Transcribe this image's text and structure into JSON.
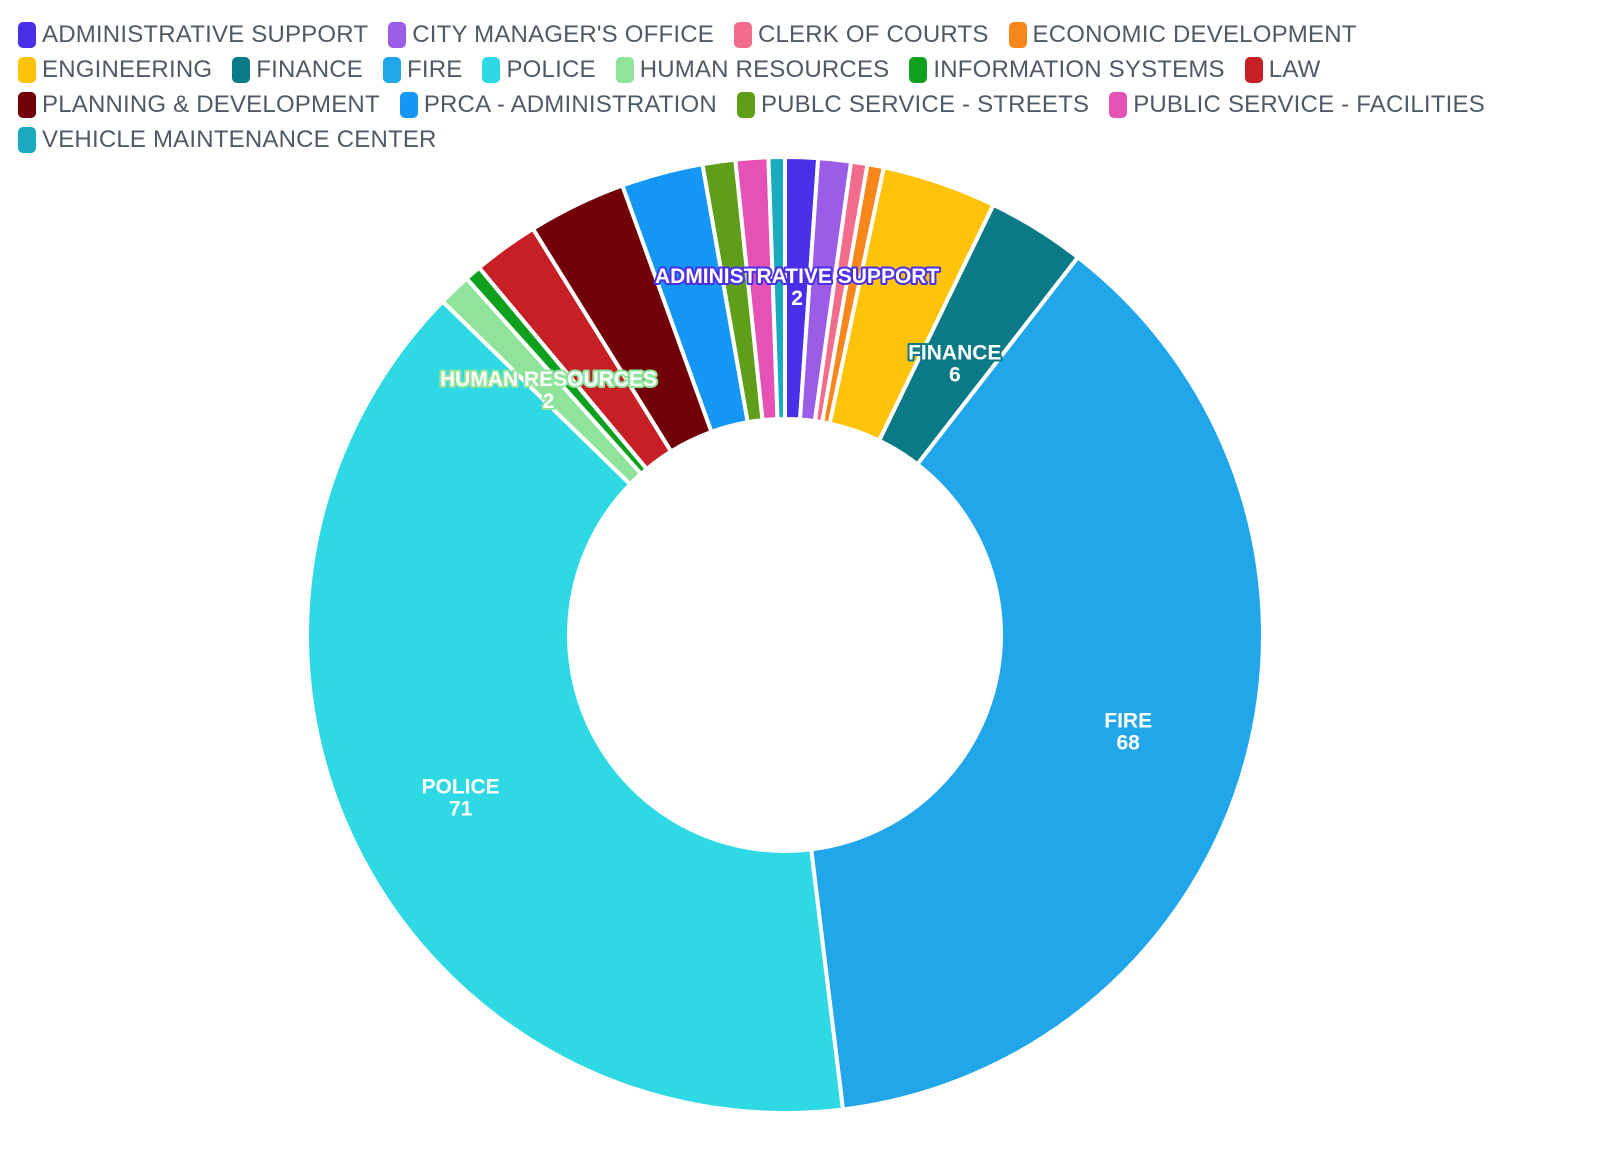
{
  "chart_data": {
    "type": "pie",
    "donut": true,
    "legend_position": "top",
    "categories": [
      "ADMINISTRATIVE SUPPORT",
      "CITY MANAGER'S OFFICE",
      "CLERK OF COURTS",
      "ECONOMIC DEVELOPMENT",
      "ENGINEERING",
      "FINANCE",
      "FIRE",
      "POLICE",
      "HUMAN RESOURCES",
      "INFORMATION SYSTEMS",
      "LAW",
      "PLANNING & DEVELOPMENT",
      "PRCA - ADMINISTRATION",
      "PUBLC SERVICE - STREETS",
      "PUBLIC SERVICE - FACILITIES",
      "VEHICLE MAINTENANCE CENTER"
    ],
    "values": [
      2,
      2,
      1,
      1,
      7,
      6,
      68,
      71,
      2,
      1,
      4,
      6,
      5,
      2,
      2,
      1
    ],
    "colors": [
      "#4a2fe8",
      "#9b5de5",
      "#f26d8c",
      "#f7871b",
      "#ffc30a",
      "#0a7a86",
      "#21a6ea",
      "#2fd9e3",
      "#8fe39a",
      "#10a020",
      "#c61f26",
      "#720008",
      "#1496f5",
      "#5e9e18",
      "#e551b5",
      "#1caabf"
    ],
    "data_labels": [
      {
        "name": "ADMINISTRATIVE SUPPORT",
        "value": "2",
        "color": "#4a2fe8"
      },
      {
        "name": "FINANCE",
        "value": "6",
        "color": "#0a7a86"
      },
      {
        "name": "HUMAN RESOURCES",
        "value": "2",
        "color": "#8fe39a"
      },
      {
        "name": "FIRE",
        "value": "68",
        "color": "#21a6ea"
      },
      {
        "name": "POLICE",
        "value": "71",
        "color": "#2fd9e3"
      }
    ]
  }
}
